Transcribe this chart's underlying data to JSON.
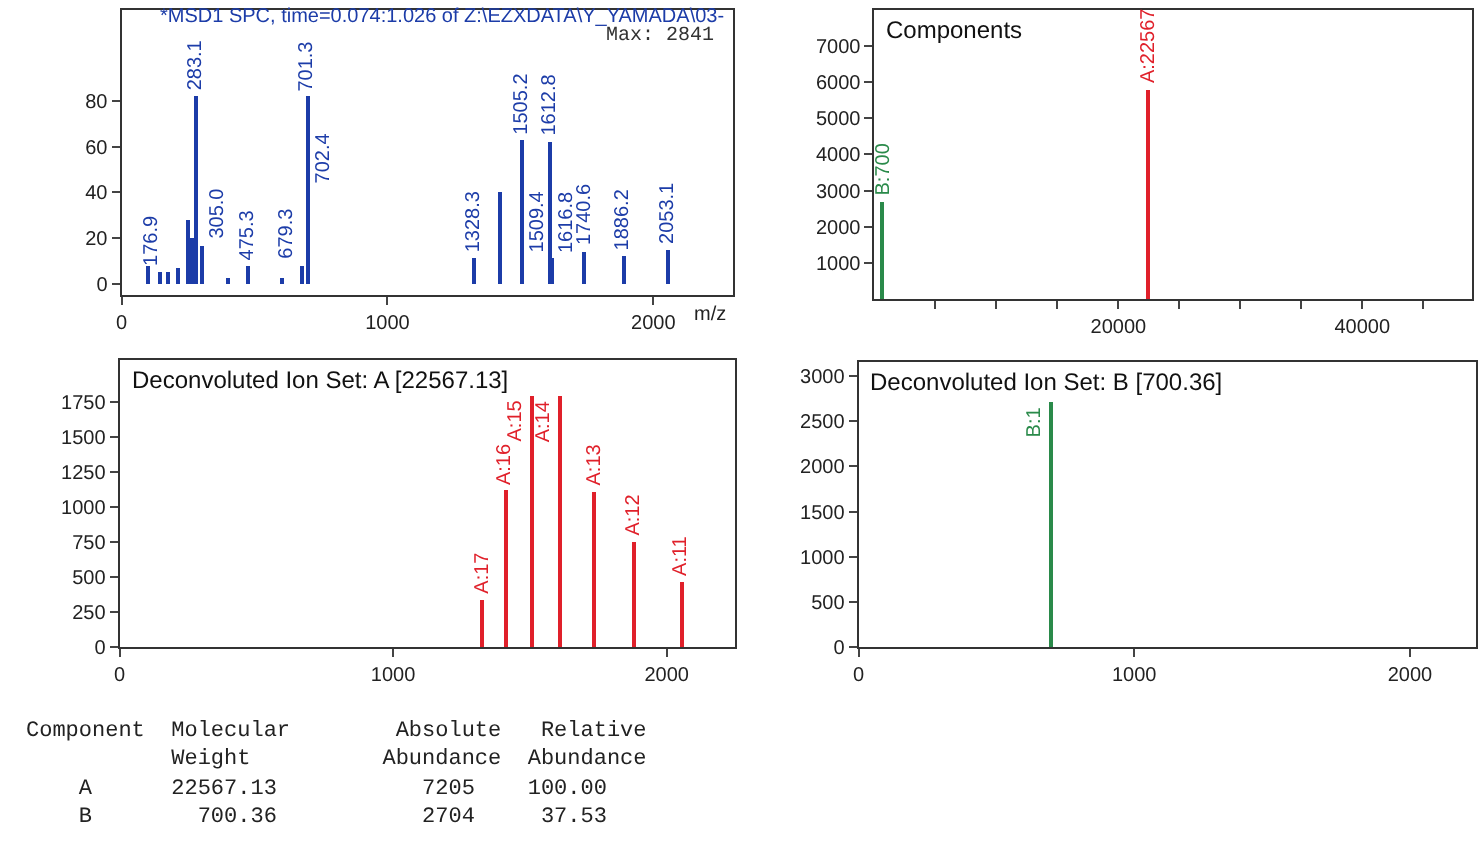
{
  "chart_data": [
    {
      "type": "bar",
      "title": "*MSD1 SPC, time=0.074:1.026 of Z:\\EZXDATA\\Y_YAMADA\\03-",
      "xlabel": "m/z",
      "color": "#1c3ca8",
      "xlim": [
        0,
        2300
      ],
      "ylim": [
        -5,
        120
      ],
      "xticks": [
        0,
        1000,
        2000
      ],
      "yticks": [
        0,
        20,
        40,
        60,
        80
      ],
      "x": [
        100,
        145,
        176.9,
        210,
        250,
        265,
        283.1,
        305.0,
        400,
        475.3,
        600,
        679.3,
        701.3,
        702.4,
        1328.3,
        1421,
        1505.2,
        1509.4,
        1612.8,
        1616.8,
        1740.6,
        1886.2,
        2053.1
      ],
      "values": [
        8,
        5,
        5,
        7,
        28,
        20,
        82,
        17,
        3,
        8,
        3,
        8,
        82,
        null,
        11,
        40,
        63,
        null,
        62,
        11,
        14,
        12,
        15
      ],
      "annotations": [
        "Max: 2841",
        {
          "text": "176.9",
          "x": 176.9,
          "y": 5
        },
        {
          "text": "283.1",
          "x": 283.1,
          "y": 82
        },
        {
          "text": "305.0",
          "x": 305.0,
          "y": 17
        },
        {
          "text": "475.3",
          "x": 475.3,
          "y": 8
        },
        {
          "text": "679.3",
          "x": 679.3,
          "y": 8
        },
        {
          "text": "701.3",
          "x": 701.3,
          "y": 82
        },
        {
          "text": "702.4",
          "x": 702.4,
          "y": 41
        },
        {
          "text": "1328.3",
          "x": 1328.3,
          "y": 11
        },
        {
          "text": "1505.2",
          "x": 1505.2,
          "y": 63
        },
        {
          "text": "1509.4",
          "x": 1509.4,
          "y": 11
        },
        {
          "text": "1612.8",
          "x": 1612.8,
          "y": 62
        },
        {
          "text": "1616.8",
          "x": 1616.8,
          "y": 11
        },
        {
          "text": "1740.6",
          "x": 1740.6,
          "y": 14
        },
        {
          "text": "1886.2",
          "x": 1886.2,
          "y": 12
        },
        {
          "text": "2053.1",
          "x": 2053.1,
          "y": 15
        }
      ]
    },
    {
      "type": "bar",
      "title": "Components",
      "x": [
        700,
        22567
      ],
      "values": [
        2700,
        5800
      ],
      "colors": [
        "#2a8a4a",
        "#e0202a"
      ],
      "xlim": [
        0,
        49000
      ],
      "ylim": [
        0,
        8000
      ],
      "xticks": [
        {
          "value": 5000,
          "label": null
        },
        {
          "value": 10000,
          "label": null
        },
        {
          "value": 15000,
          "label": null
        },
        20000,
        {
          "value": 25000,
          "label": null
        },
        {
          "value": 30000,
          "label": null
        },
        {
          "value": 35000,
          "label": null
        },
        40000,
        {
          "value": 45000,
          "label": null
        }
      ],
      "yticks": [
        1000,
        2000,
        3000,
        4000,
        5000,
        6000,
        7000
      ],
      "annotations": [
        {
          "text": "B:700",
          "x": 700,
          "y": 2700
        },
        {
          "text": "A:22567",
          "x": 22567,
          "y": 5800
        }
      ]
    },
    {
      "type": "bar",
      "title": "Deconvoluted Ion Set: A [22567.13]",
      "color": "#e0202a",
      "xlim": [
        0,
        2250
      ],
      "ylim": [
        0,
        2050
      ],
      "xticks": [
        0,
        1000,
        2000
      ],
      "yticks": [
        0,
        250,
        500,
        750,
        1000,
        1250,
        1500,
        1750
      ],
      "x": [
        1328.5,
        1411.4,
        1505.5,
        1613.0,
        1736.9,
        1881.6,
        2052.6
      ],
      "values": [
        340,
        1120,
        1800,
        1790,
        1110,
        750,
        460
      ],
      "annotations": [
        {
          "text": "A:17",
          "x": 1328.5,
          "y": 340
        },
        {
          "text": "A:16",
          "x": 1411.4,
          "y": 1120
        },
        {
          "text": "A:15",
          "x": 1505.5,
          "y": 1800
        },
        {
          "text": "A:14",
          "x": 1613.0,
          "y": 1790
        },
        {
          "text": "A:13",
          "x": 1736.9,
          "y": 1110
        },
        {
          "text": "A:12",
          "x": 1881.6,
          "y": 750
        },
        {
          "text": "A:11",
          "x": 2052.6,
          "y": 460
        }
      ]
    },
    {
      "type": "bar",
      "title": "Deconvoluted Ion Set: B [700.36]",
      "color": "#2a8a4a",
      "xlim": [
        0,
        2240
      ],
      "ylim": [
        0,
        3150
      ],
      "xticks": [
        0,
        1000,
        2000
      ],
      "yticks": [
        0,
        500,
        1000,
        1500,
        2000,
        2500,
        3000
      ],
      "x": [
        700.36
      ],
      "values": [
        2700
      ],
      "annotations": [
        {
          "text": "B:1",
          "x": 700.36,
          "y": 2700
        }
      ]
    },
    {
      "type": "other",
      "annotations": [
        "Component  Molecular        Absolute   Relative",
        "           Weight          Abundance  Abundance",
        "    A      22567.13           7205    100.00",
        "    B        700.36           2704     37.53"
      ]
    }
  ]
}
